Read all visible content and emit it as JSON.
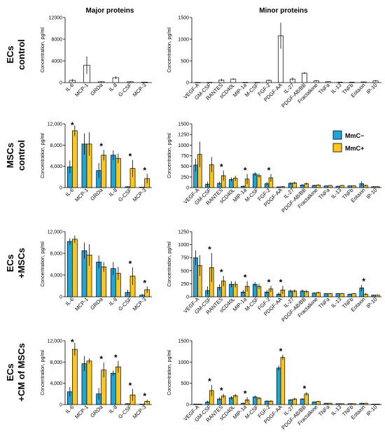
{
  "column_titles": [
    "Major proteins",
    "Minor proteins"
  ],
  "row_labels": [
    [
      "ECs",
      "control"
    ],
    [
      "MSCs",
      "control"
    ],
    [
      "ECs",
      "+MSCs"
    ],
    [
      "ECs",
      "+CM of MSCs"
    ]
  ],
  "legend": {
    "mmc_minus": "MmC−",
    "mmc_plus": "MmC+"
  },
  "colors": {
    "mmc_minus": "#1EA5DC",
    "mmc_plus": "#FFC61A",
    "control": "#FFFFFF"
  },
  "chart_data": [
    {
      "id": "ec-control-major",
      "type": "bar",
      "title": "",
      "ylabel": "Concentration, pg/ml",
      "ylim": [
        0,
        12000
      ],
      "yticks": [
        "0",
        "4000",
        "8000",
        "12000"
      ],
      "categories": [
        "IL-6",
        "MCP-1",
        "GROa",
        "IL-8",
        "G-CSF",
        "MCP-3"
      ],
      "series": [
        {
          "values": [
            400,
            3200,
            150,
            900,
            150,
            80
          ],
          "errors": [
            250,
            1600,
            100,
            250,
            100,
            50
          ]
        }
      ],
      "significant": []
    },
    {
      "id": "ec-control-minor",
      "type": "bar",
      "title": "",
      "ylabel": "Concentration, pg/ml",
      "ylim": [
        0,
        1500
      ],
      "yticks": [
        "0",
        "500",
        "1000",
        "1500"
      ],
      "categories": [
        "VEGF-A",
        "GM-CSF",
        "RANTES",
        "sCD40L",
        "MIP-1a",
        "M-CSF",
        "FGF-2",
        "PDGF-AA",
        "IL-27",
        "PDGF-AB/BB",
        "Fractalkine",
        "TNFa",
        "IL-13",
        "TNFb",
        "Eotaxin",
        "IP-10"
      ],
      "series": [
        {
          "values": [
            5,
            5,
            60,
            80,
            5,
            5,
            50,
            1080,
            80,
            220,
            40,
            20,
            10,
            10,
            15,
            40
          ],
          "errors": [
            3,
            3,
            30,
            20,
            3,
            3,
            20,
            300,
            40,
            20,
            20,
            10,
            5,
            5,
            10,
            15
          ]
        }
      ],
      "significant": []
    },
    {
      "id": "msc-control-major",
      "type": "bar",
      "title": "",
      "ylabel": "Concentration, pg/ml",
      "ylim": [
        0,
        12000
      ],
      "yticks": [
        "0",
        "4,000",
        "8,000",
        "12,000"
      ],
      "categories": [
        "IL-6",
        "MCP-1",
        "GROa",
        "IL-8",
        "G-CSF",
        "MCP-3"
      ],
      "series": [
        {
          "name": "MmC−",
          "values": [
            3900,
            8200,
            3200,
            6100,
            150,
            80
          ],
          "errors": [
            1200,
            2000,
            1400,
            900,
            100,
            50
          ]
        },
        {
          "name": "MmC+",
          "values": [
            10700,
            8200,
            6100,
            5500,
            3600,
            1700
          ],
          "errors": [
            1000,
            2200,
            1000,
            900,
            1600,
            900
          ]
        }
      ],
      "significant": [
        0,
        2,
        4,
        5
      ]
    },
    {
      "id": "msc-control-minor",
      "type": "bar",
      "title": "",
      "ylabel": "Concentration, pg/ml",
      "ylim": [
        0,
        1500
      ],
      "yticks": [
        "0",
        "250",
        "500",
        "750",
        "1000",
        "1250",
        "1500"
      ],
      "categories": [
        "VEGF-A",
        "GM-CSF",
        "RANTES",
        "sCD40L",
        "MIP-1a",
        "M-CSF",
        "FGF-2",
        "PDGF-AA",
        "IL-27",
        "PDGF-AB/BB",
        "Fractalkine",
        "TNFa",
        "IL-13",
        "TNFb",
        "Eotaxin",
        "IP-10"
      ],
      "series": [
        {
          "name": "MmC−",
          "values": [
            530,
            80,
            100,
            190,
            30,
            320,
            90,
            15,
            100,
            60,
            50,
            40,
            30,
            40,
            90,
            20
          ],
          "errors": [
            150,
            60,
            40,
            50,
            20,
            40,
            40,
            10,
            30,
            20,
            15,
            10,
            10,
            10,
            60,
            10
          ]
        },
        {
          "name": "MmC+",
          "values": [
            780,
            540,
            280,
            220,
            200,
            280,
            230,
            20,
            110,
            90,
            60,
            50,
            50,
            40,
            50,
            20
          ],
          "errors": [
            300,
            180,
            120,
            60,
            120,
            50,
            90,
            10,
            30,
            30,
            15,
            10,
            10,
            10,
            20,
            10
          ]
        }
      ],
      "significant": [
        2,
        4,
        6
      ]
    },
    {
      "id": "ec-msc-major",
      "type": "bar",
      "title": "",
      "ylabel": "Concentration, pg/ml",
      "ylim": [
        0,
        12000
      ],
      "yticks": [
        "0",
        "4,000",
        "8,000",
        "12,000"
      ],
      "categories": [
        "IL-6",
        "MCP-1",
        "GROa",
        "IL-8",
        "G-CSF",
        "MCP-3"
      ],
      "series": [
        {
          "name": "MmC−",
          "values": [
            10200,
            8500,
            6400,
            5200,
            800,
            300
          ],
          "errors": [
            600,
            1500,
            1200,
            1200,
            500,
            200
          ]
        },
        {
          "name": "MmC+",
          "values": [
            10600,
            7700,
            5500,
            4300,
            3800,
            1300
          ],
          "errors": [
            700,
            2000,
            900,
            1200,
            1600,
            600
          ]
        }
      ],
      "significant": [
        4,
        5
      ]
    },
    {
      "id": "ec-msc-minor",
      "type": "bar",
      "title": "",
      "ylabel": "Concentration, pg/ml",
      "ylim": [
        0,
        1250
      ],
      "yticks": [
        "0",
        "250",
        "500",
        "750",
        "1000",
        "1250"
      ],
      "categories": [
        "VEGF-A",
        "GM-CSF",
        "RANTES",
        "sCD40L",
        "MIP-1a",
        "M-CSF",
        "FGF-2",
        "PDGF-AA",
        "IL-27",
        "PDGF-AB/BB",
        "Fractalkine",
        "TNFa",
        "IL-13",
        "TNFb",
        "Eotaxin",
        "IP-10"
      ],
      "series": [
        {
          "name": "MmC−",
          "values": [
            750,
            120,
            180,
            240,
            90,
            240,
            90,
            50,
            110,
            110,
            70,
            60,
            60,
            50,
            170,
            30
          ],
          "errors": [
            140,
            80,
            60,
            60,
            40,
            40,
            40,
            30,
            30,
            30,
            15,
            10,
            10,
            10,
            60,
            10
          ]
        },
        {
          "name": "MmC+",
          "values": [
            600,
            560,
            300,
            240,
            200,
            200,
            150,
            130,
            110,
            100,
            80,
            60,
            60,
            60,
            50,
            30
          ],
          "errors": [
            200,
            280,
            100,
            60,
            100,
            50,
            60,
            80,
            30,
            30,
            15,
            10,
            10,
            10,
            20,
            10
          ]
        }
      ],
      "significant": [
        1,
        2,
        4,
        6,
        7,
        14
      ]
    },
    {
      "id": "ec-cm-major",
      "type": "bar",
      "title": "",
      "ylabel": "Concentration, pg/ml",
      "ylim": [
        0,
        12000
      ],
      "yticks": [
        "0",
        "4,000",
        "8,000",
        "12,000"
      ],
      "categories": [
        "IL-6",
        "MCP-1",
        "GROa",
        "IL-8",
        "G-CSF",
        "MCP-3"
      ],
      "series": [
        {
          "name": "MmC−",
          "values": [
            2400,
            7700,
            2000,
            5900,
            150,
            80
          ],
          "errors": [
            900,
            1400,
            1100,
            500,
            100,
            50
          ]
        },
        {
          "name": "MmC+",
          "values": [
            10400,
            8200,
            6500,
            7100,
            1800,
            600
          ],
          "errors": [
            1200,
            500,
            1400,
            1100,
            1100,
            300
          ]
        }
      ],
      "significant": [
        0,
        2,
        3,
        4,
        5
      ]
    },
    {
      "id": "ec-cm-minor",
      "type": "bar",
      "title": "",
      "ylabel": "Concentration, pg/ml",
      "ylim": [
        0,
        1500
      ],
      "yticks": [
        "0",
        "500",
        "1000",
        "1500"
      ],
      "categories": [
        "VEGF-A",
        "GM-CSF",
        "RANTES",
        "sCD40L",
        "MIP-1a",
        "M-CSF",
        "FGF-2",
        "PDGF-AA",
        "IL-27",
        "PDGF-AB/BB",
        "Fractalkine",
        "TNFa",
        "IL-13",
        "TNFb",
        "Eotaxin",
        "IP-10"
      ],
      "series": [
        {
          "name": "MmC−",
          "values": [
            10,
            60,
            130,
            160,
            30,
            180,
            80,
            860,
            110,
            130,
            60,
            30,
            20,
            20,
            30,
            10
          ],
          "errors": [
            5,
            30,
            40,
            40,
            15,
            30,
            20,
            60,
            20,
            20,
            15,
            10,
            5,
            5,
            10,
            5
          ]
        },
        {
          "name": "MmC+",
          "values": [
            10,
            330,
            200,
            210,
            110,
            150,
            80,
            1110,
            130,
            250,
            70,
            30,
            20,
            20,
            30,
            10
          ],
          "errors": [
            5,
            130,
            50,
            40,
            60,
            30,
            20,
            60,
            30,
            40,
            15,
            10,
            5,
            5,
            10,
            5
          ]
        }
      ],
      "significant": [
        1,
        2,
        4,
        7,
        9
      ]
    }
  ]
}
